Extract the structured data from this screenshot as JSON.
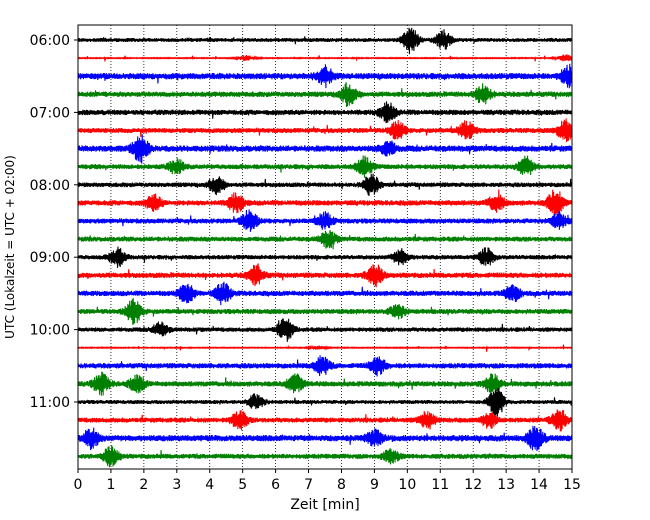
{
  "chart_data": {
    "type": "line",
    "subtype": "helicorder-seismogram",
    "title": "",
    "xlabel": "Zeit  [min]",
    "ylabel": "UTC (Lokalzeit = UTC + 02:00)",
    "xlim": [
      0,
      15
    ],
    "x_ticks": [
      "0",
      "1",
      "2",
      "3",
      "4",
      "5",
      "6",
      "7",
      "8",
      "9",
      "10",
      "11",
      "12",
      "13",
      "14",
      "15"
    ],
    "y_tick_labels": [
      "06:00",
      "07:00",
      "08:00",
      "09:00",
      "10:00",
      "11:00"
    ],
    "trace_interval_minutes": 15,
    "trace_start_times": [
      "06:00",
      "06:15",
      "06:30",
      "06:45",
      "07:00",
      "07:15",
      "07:30",
      "07:45",
      "08:00",
      "08:15",
      "08:30",
      "08:45",
      "09:00",
      "09:15",
      "09:30",
      "09:45",
      "10:00",
      "10:15",
      "10:30",
      "10:45",
      "11:00",
      "11:15",
      "11:30",
      "11:45"
    ],
    "color_cycle": [
      "#000000",
      "#ff0000",
      "#0000ff",
      "#008000"
    ],
    "grid": "vertical dotted at each minute",
    "events": [
      [
        [
          10.1,
          1.4
        ],
        [
          11.1,
          1.0
        ]
      ],
      [
        [
          5.1,
          0.3
        ],
        [
          14.8,
          0.4
        ]
      ],
      [
        [
          7.5,
          1.0
        ],
        [
          14.9,
          1.1
        ]
      ],
      [
        [
          8.2,
          1.2
        ],
        [
          12.3,
          1.0
        ]
      ],
      [
        [
          9.4,
          1.0
        ]
      ],
      [
        [
          9.7,
          0.9
        ],
        [
          11.8,
          1.0
        ],
        [
          14.8,
          1.1
        ]
      ],
      [
        [
          1.9,
          1.4
        ],
        [
          9.4,
          0.8
        ]
      ],
      [
        [
          3.0,
          0.8
        ],
        [
          8.7,
          1.0
        ],
        [
          13.6,
          1.0
        ]
      ],
      [
        [
          4.2,
          0.9
        ],
        [
          8.9,
          1.1
        ]
      ],
      [
        [
          2.3,
          0.8
        ],
        [
          4.8,
          1.0
        ],
        [
          12.7,
          0.9
        ],
        [
          14.5,
          1.4
        ]
      ],
      [
        [
          5.2,
          1.1
        ],
        [
          7.5,
          0.9
        ],
        [
          14.6,
          0.8
        ]
      ],
      [
        [
          7.6,
          0.9
        ]
      ],
      [
        [
          1.2,
          1.0
        ],
        [
          9.8,
          0.8
        ],
        [
          12.4,
          0.9
        ]
      ],
      [
        [
          5.4,
          1.0
        ],
        [
          9.0,
          1.2
        ]
      ],
      [
        [
          3.3,
          1.0
        ],
        [
          4.4,
          1.1
        ],
        [
          13.2,
          0.8
        ]
      ],
      [
        [
          1.7,
          1.3
        ],
        [
          9.7,
          0.7
        ]
      ],
      [
        [
          2.5,
          0.7
        ],
        [
          6.3,
          1.2
        ]
      ],
      [
        [
          7.3,
          0.2
        ]
      ],
      [
        [
          7.4,
          1.0
        ],
        [
          9.1,
          0.9
        ]
      ],
      [
        [
          0.7,
          1.1
        ],
        [
          1.8,
          0.9
        ],
        [
          6.6,
          1.0
        ],
        [
          12.6,
          1.0
        ]
      ],
      [
        [
          5.4,
          0.8
        ],
        [
          12.7,
          1.5
        ]
      ],
      [
        [
          4.9,
          1.0
        ],
        [
          10.6,
          0.9
        ],
        [
          12.5,
          0.8
        ],
        [
          14.6,
          1.2
        ]
      ],
      [
        [
          0.4,
          1.0
        ],
        [
          9.0,
          0.8
        ],
        [
          13.9,
          1.3
        ]
      ],
      [
        [
          1.0,
          1.0
        ],
        [
          9.5,
          0.7
        ]
      ]
    ],
    "noise_level": [
      0.22,
      0.05,
      0.35,
      0.3,
      0.3,
      0.28,
      0.35,
      0.28,
      0.26,
      0.3,
      0.28,
      0.28,
      0.25,
      0.3,
      0.3,
      0.28,
      0.25,
      0.05,
      0.3,
      0.3,
      0.22,
      0.28,
      0.35,
      0.28
    ]
  }
}
